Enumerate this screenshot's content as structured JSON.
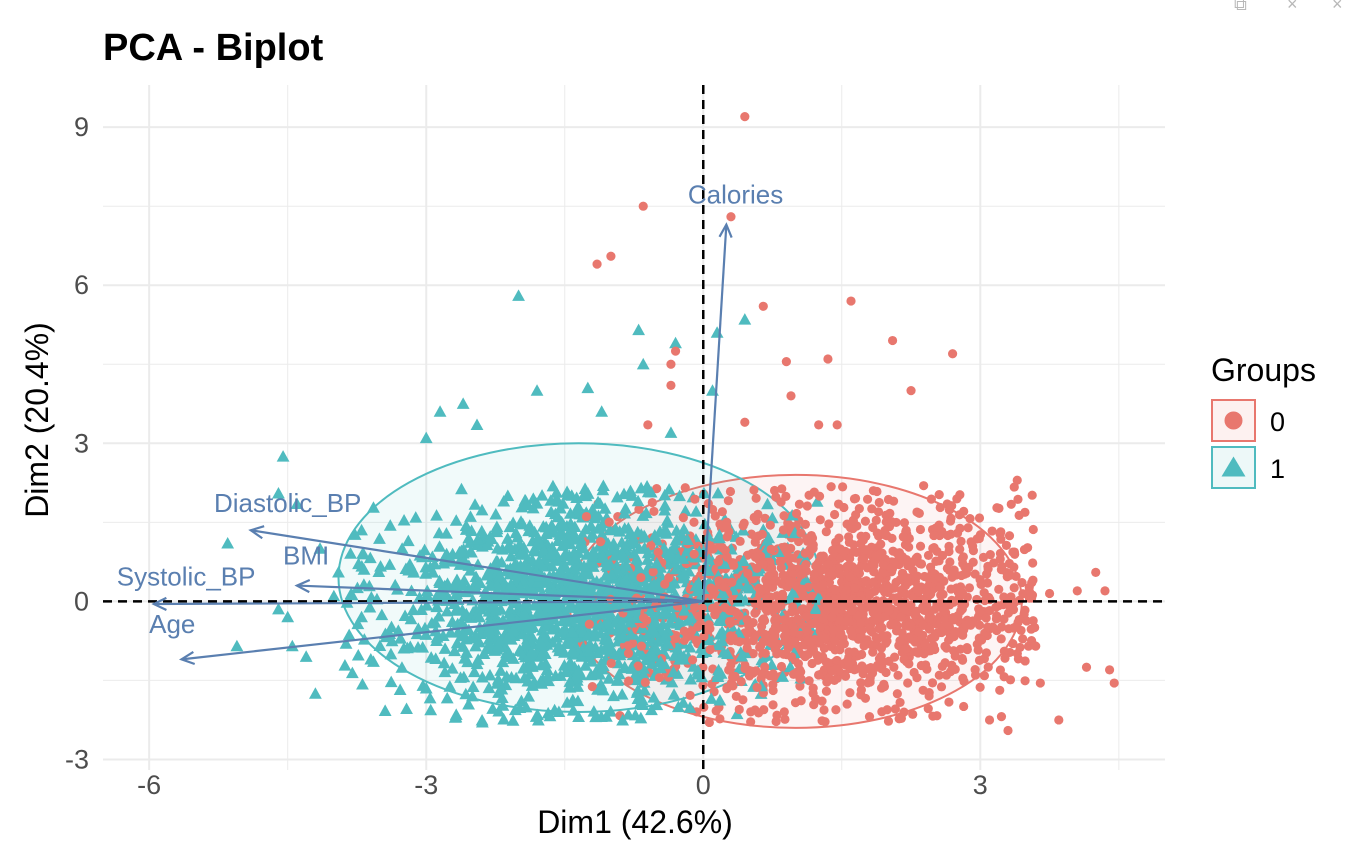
{
  "window_controls": [
    "⧉",
    "×",
    "×"
  ],
  "chart_data": {
    "type": "scatter",
    "title": "PCA - Biplot",
    "xlabel": "Dim1 (42.6%)",
    "ylabel": "Dim2 (20.4%)",
    "xlim": [
      -6.5,
      5.0
    ],
    "ylim": [
      -3.2,
      9.8
    ],
    "x_ticks": [
      -6,
      -3,
      0,
      3
    ],
    "x_tick_labels": [
      "-6",
      "-3",
      "0",
      "3"
    ],
    "y_ticks": [
      -3,
      0,
      3,
      6,
      9
    ],
    "y_tick_labels": [
      "-3",
      "0",
      "3",
      "6",
      "9"
    ],
    "grid": true,
    "reference_lines": {
      "x": 0,
      "y": 0,
      "style": "dashed"
    },
    "legend": {
      "title": "Groups",
      "position": "right",
      "entries": [
        {
          "label": "0",
          "shape": "circle",
          "color": "#E8776E"
        },
        {
          "label": "1",
          "shape": "triangle",
          "color": "#4FBBBF"
        }
      ]
    },
    "groups": [
      {
        "name": "0",
        "shape": "circle",
        "color": "#E8776E",
        "count": 1700,
        "cloud_center": [
          1.4,
          0.0
        ],
        "cloud_spread": [
          1.05,
          0.95
        ],
        "ellipse": {
          "cx": 1.0,
          "cy": 0.0,
          "rx": 2.45,
          "ry": 2.4
        },
        "outliers": [
          [
            0.45,
            9.2
          ],
          [
            0.3,
            7.3
          ],
          [
            -0.65,
            7.5
          ],
          [
            -1.0,
            6.55
          ],
          [
            -1.15,
            6.4
          ],
          [
            0.65,
            5.6
          ],
          [
            1.6,
            5.7
          ],
          [
            2.05,
            4.95
          ],
          [
            2.7,
            4.7
          ],
          [
            -0.3,
            4.75
          ],
          [
            1.35,
            4.6
          ],
          [
            0.95,
            3.9
          ],
          [
            2.25,
            4.0
          ],
          [
            0.9,
            4.55
          ],
          [
            0.45,
            3.4
          ],
          [
            1.25,
            3.35
          ],
          [
            1.45,
            3.35
          ],
          [
            3.4,
            2.3
          ],
          [
            4.25,
            0.55
          ],
          [
            4.35,
            0.2
          ],
          [
            4.05,
            0.2
          ],
          [
            3.75,
            0.15
          ],
          [
            4.4,
            -1.3
          ],
          [
            4.45,
            -1.55
          ],
          [
            4.15,
            -1.25
          ],
          [
            3.6,
            -0.85
          ],
          [
            3.65,
            -1.55
          ],
          [
            3.1,
            -2.25
          ],
          [
            3.3,
            -2.45
          ],
          [
            3.85,
            -2.25
          ],
          [
            -0.35,
            4.5
          ],
          [
            -0.6,
            3.35
          ],
          [
            -0.35,
            4.1
          ]
        ]
      },
      {
        "name": "1",
        "shape": "triangle",
        "color": "#4FBBBF",
        "count": 1600,
        "cloud_center": [
          -1.3,
          0.0
        ],
        "cloud_spread": [
          1.05,
          0.95
        ],
        "ellipse": {
          "cx": -1.35,
          "cy": 0.45,
          "rx": 2.6,
          "ry": 2.55
        },
        "outliers": [
          [
            -2.0,
            5.8
          ],
          [
            0.45,
            5.35
          ],
          [
            0.15,
            5.1
          ],
          [
            -0.7,
            5.15
          ],
          [
            -0.3,
            4.9
          ],
          [
            -0.65,
            4.5
          ],
          [
            -1.25,
            4.05
          ],
          [
            -1.8,
            4.0
          ],
          [
            -2.6,
            3.75
          ],
          [
            -2.45,
            3.35
          ],
          [
            -3.0,
            3.1
          ],
          [
            -2.85,
            3.6
          ],
          [
            -1.1,
            3.6
          ],
          [
            0.1,
            4.0
          ],
          [
            -0.35,
            3.2
          ],
          [
            -4.55,
            2.75
          ],
          [
            -4.6,
            2.05
          ],
          [
            -4.4,
            1.85
          ],
          [
            -5.15,
            1.1
          ],
          [
            -4.15,
            1.0
          ],
          [
            -3.7,
            1.35
          ],
          [
            -3.95,
            0.55
          ],
          [
            -4.0,
            0.1
          ],
          [
            -4.6,
            -0.15
          ],
          [
            -4.5,
            -0.3
          ],
          [
            -3.7,
            -0.3
          ],
          [
            -5.05,
            -0.85
          ],
          [
            -4.45,
            -0.85
          ],
          [
            -4.3,
            -1.05
          ],
          [
            -4.2,
            -1.75
          ],
          [
            -3.6,
            -1.1
          ],
          [
            -3.0,
            -1.65
          ],
          [
            -2.5,
            -1.8
          ],
          [
            -1.85,
            -1.6
          ]
        ]
      }
    ],
    "variables": [
      {
        "name": "Calories",
        "x": 0.25,
        "y": 7.15
      },
      {
        "name": "Diastolic_BP",
        "x": -4.9,
        "y": 1.35
      },
      {
        "name": "BMI",
        "x": -4.4,
        "y": 0.3
      },
      {
        "name": "Systolic_BP",
        "x": -5.95,
        "y": -0.05
      },
      {
        "name": "Age",
        "x": -5.65,
        "y": -1.1
      }
    ],
    "variable_color": "#5A7FB0",
    "ellipse_opacity": 0.08
  }
}
